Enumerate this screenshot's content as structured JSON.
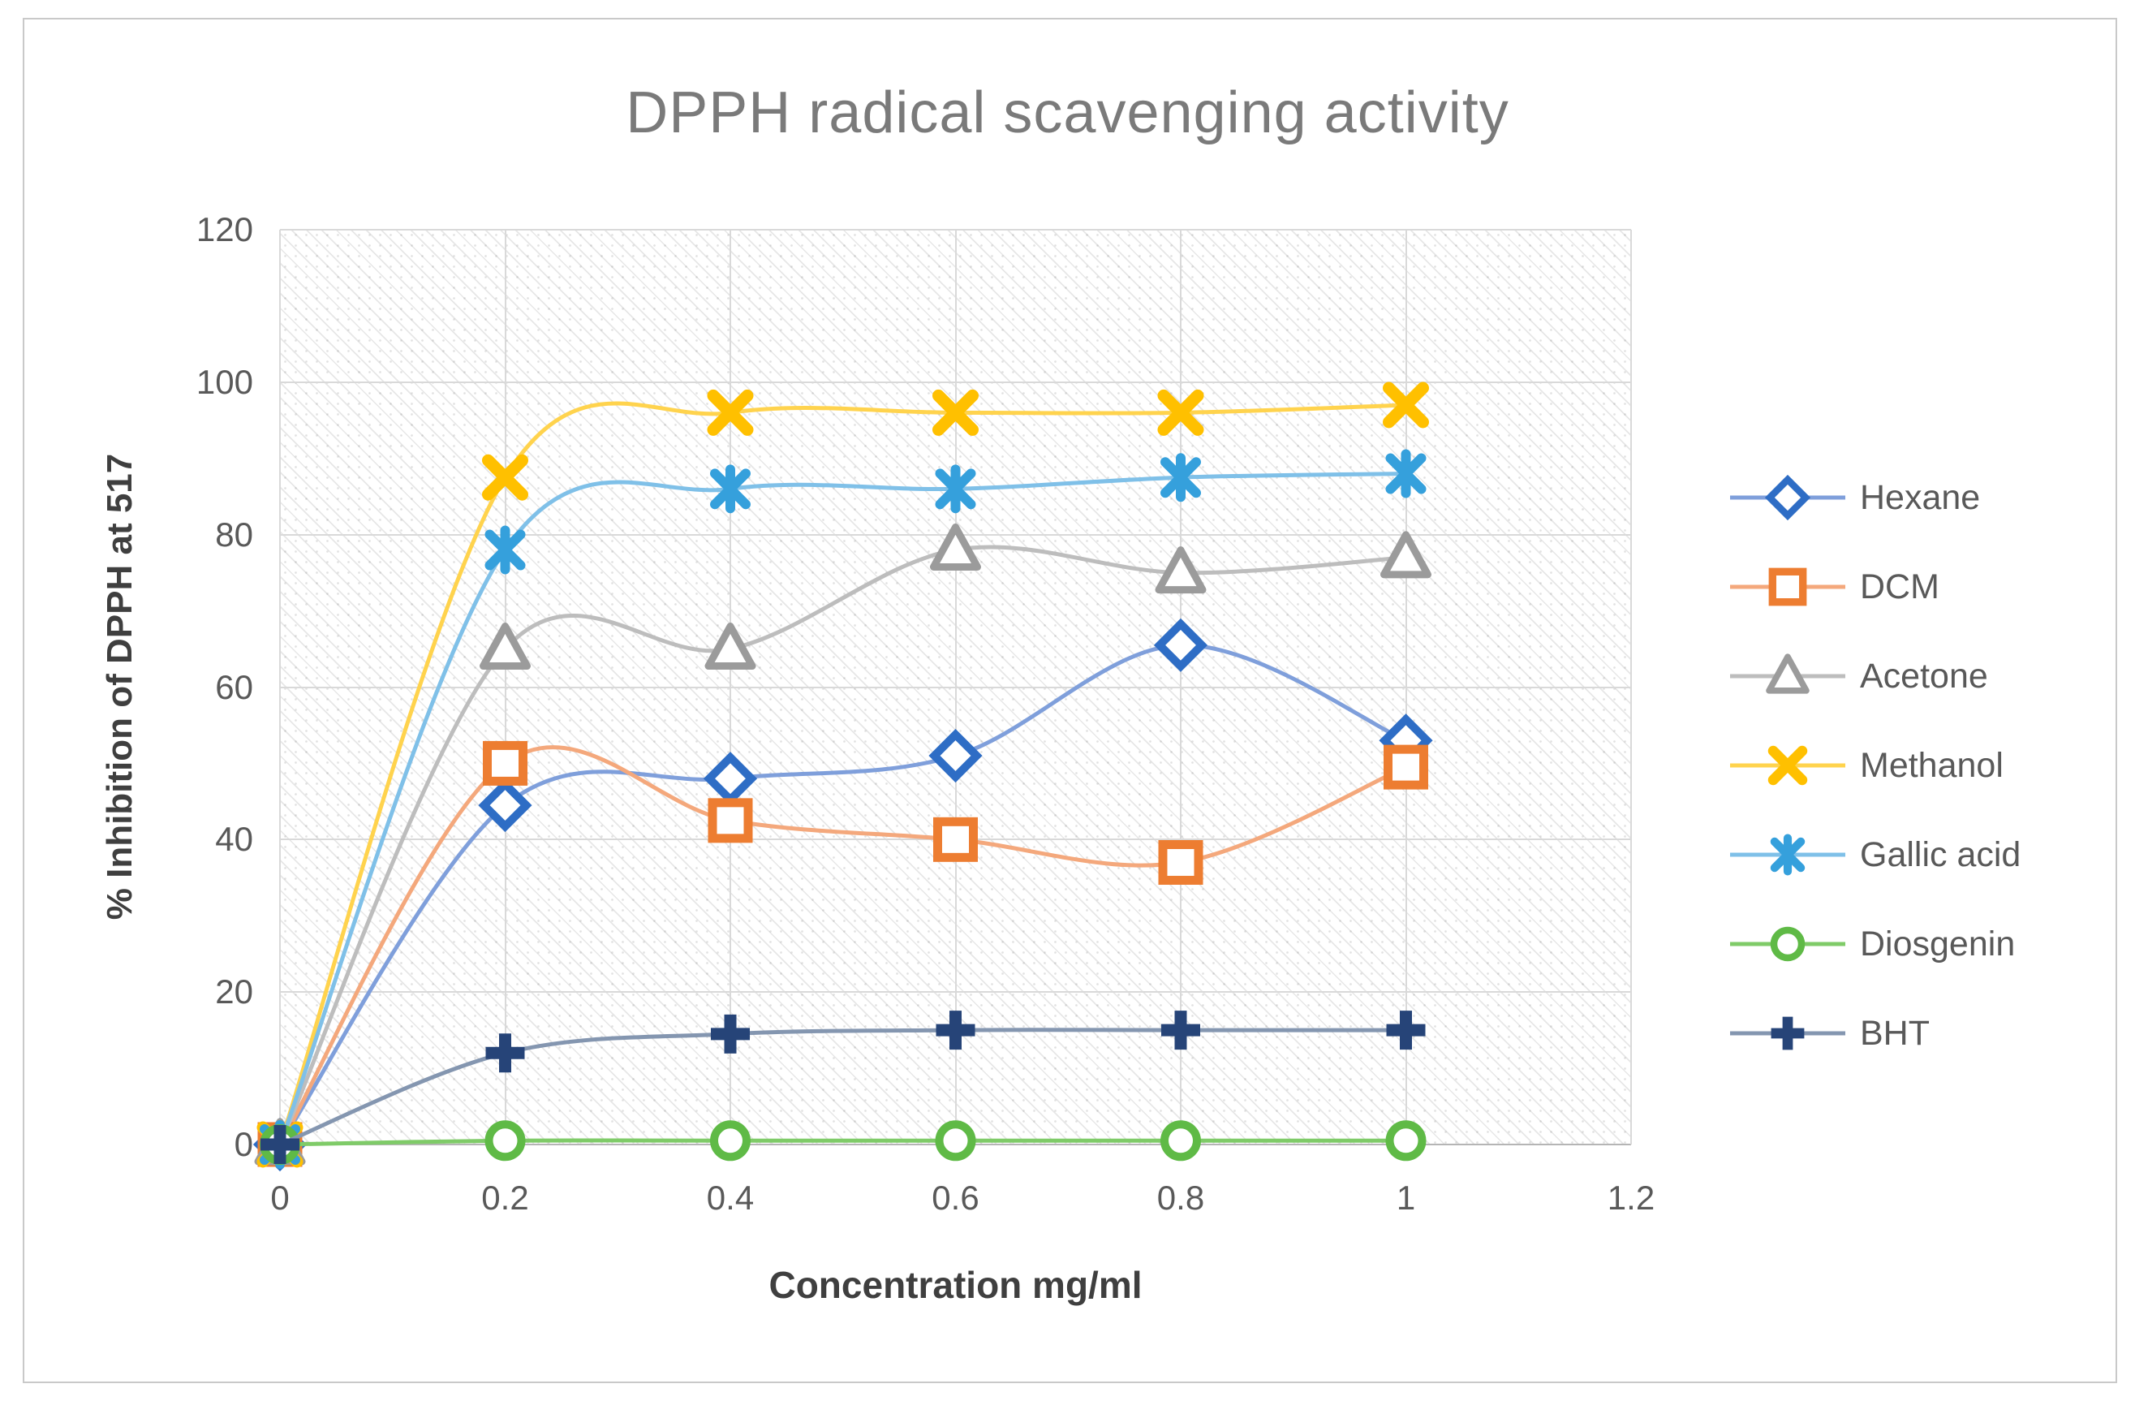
{
  "chart_data": {
    "type": "line",
    "title": "DPPH radical scavenging activity",
    "xlabel": "Concentration mg/ml",
    "ylabel": "% Inhibition of DPPH at 517",
    "x": [
      0,
      0.2,
      0.4,
      0.6,
      0.8,
      1
    ],
    "xlim": [
      0,
      1.2
    ],
    "ylim": [
      0,
      120
    ],
    "x_tick_labels": [
      "0",
      "0.2",
      "0.4",
      "0.6",
      "0.8",
      "1",
      "1.2"
    ],
    "y_tick_labels": [
      "0",
      "20",
      "40",
      "60",
      "80",
      "100",
      "120"
    ],
    "grid": true,
    "plot_background": "diagonal-hatch",
    "legend_position": "right",
    "series": [
      {
        "name": "Hexane",
        "marker": "diamond",
        "color": "#2e6dc5",
        "line_color": "#7f9fdb",
        "values": [
          0,
          44.5,
          48,
          51,
          65.5,
          53
        ]
      },
      {
        "name": "DCM",
        "marker": "square",
        "color": "#ed7d31",
        "line_color": "#f4a87c",
        "values": [
          0,
          50,
          42.5,
          40,
          37,
          49.5
        ]
      },
      {
        "name": "Acetone",
        "marker": "triangle",
        "color": "#9b9b9b",
        "line_color": "#bdbdbd",
        "values": [
          0,
          65,
          65,
          78,
          75,
          77
        ]
      },
      {
        "name": "Methanol",
        "marker": "x",
        "color": "#ffc000",
        "line_color": "#ffd34d",
        "values": [
          0,
          87.5,
          96,
          96,
          96,
          97
        ]
      },
      {
        "name": "Gallic acid",
        "marker": "asterisk",
        "color": "#35a0dc",
        "line_color": "#7fc0e8",
        "values": [
          0,
          78,
          86,
          86,
          87.5,
          88
        ]
      },
      {
        "name": "Diosgenin",
        "marker": "circle",
        "color": "#5fba46",
        "line_color": "#7fcb68",
        "values": [
          0,
          0.5,
          0.5,
          0.5,
          0.5,
          0.5
        ]
      },
      {
        "name": "BHT",
        "marker": "plus",
        "color": "#264478",
        "line_color": "#8496b0",
        "values": [
          0,
          12,
          14.5,
          15,
          15,
          15
        ]
      }
    ]
  }
}
